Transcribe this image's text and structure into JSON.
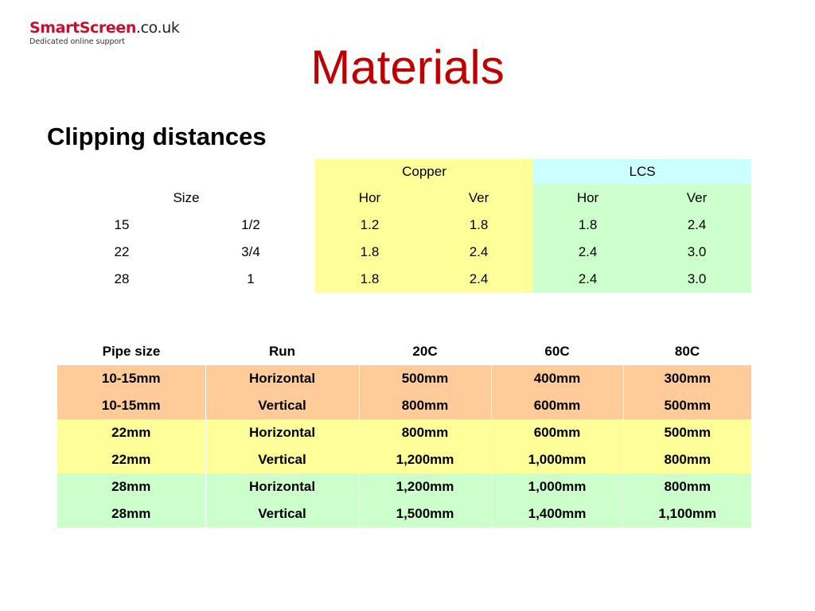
{
  "logo": {
    "brand": "SmartScreen",
    "domain": ".co.uk",
    "tagline": "Dedicated online support"
  },
  "title": "Materials",
  "subtitle": "Clipping distances",
  "clipping_table": {
    "group_headers": {
      "copper": "Copper",
      "lcs": "LCS"
    },
    "size_header": "Size",
    "sub_headers": [
      "Hor",
      "Ver",
      "Hor",
      "Ver"
    ],
    "rows": [
      {
        "mm": "15",
        "inch": "1/2",
        "copper_hor": "1.2",
        "copper_ver": "1.8",
        "lcs_hor": "1.8",
        "lcs_ver": "2.4"
      },
      {
        "mm": "22",
        "inch": "3/4",
        "copper_hor": "1.8",
        "copper_ver": "2.4",
        "lcs_hor": "2.4",
        "lcs_ver": "3.0"
      },
      {
        "mm": "28",
        "inch": "1",
        "copper_hor": "1.8",
        "copper_ver": "2.4",
        "lcs_hor": "2.4",
        "lcs_ver": "3.0"
      }
    ]
  },
  "pipe_table": {
    "headers": [
      "Pipe size",
      "Run",
      "20C",
      "60C",
      "80C"
    ],
    "rows": [
      {
        "size": "10-15mm",
        "run": "Horizontal",
        "t20": "500mm",
        "t60": "400mm",
        "t80": "300mm"
      },
      {
        "size": "10-15mm",
        "run": "Vertical",
        "t20": "800mm",
        "t60": "600mm",
        "t80": "500mm"
      },
      {
        "size": "22mm",
        "run": "Horizontal",
        "t20": "800mm",
        "t60": "600mm",
        "t80": "500mm"
      },
      {
        "size": "22mm",
        "run": "Vertical",
        "t20": "1,200mm",
        "t60": "1,000mm",
        "t80": "800mm"
      },
      {
        "size": "28mm",
        "run": "Horizontal",
        "t20": "1,200mm",
        "t60": "1,000mm",
        "t80": "800mm"
      },
      {
        "size": "28mm",
        "run": "Vertical",
        "t20": "1,500mm",
        "t60": "1,400mm",
        "t80": "1,100mm"
      }
    ],
    "colors": {
      "orange": "#ffcc99",
      "yellow": "#ffff99",
      "green": "#ccffcc"
    }
  },
  "colors": {
    "title": "#c00000",
    "brand": "#c8102e",
    "copper_bg": "#ffff99",
    "lcs_header_bg": "#ccffff",
    "lcs_bg": "#ccffcc"
  }
}
